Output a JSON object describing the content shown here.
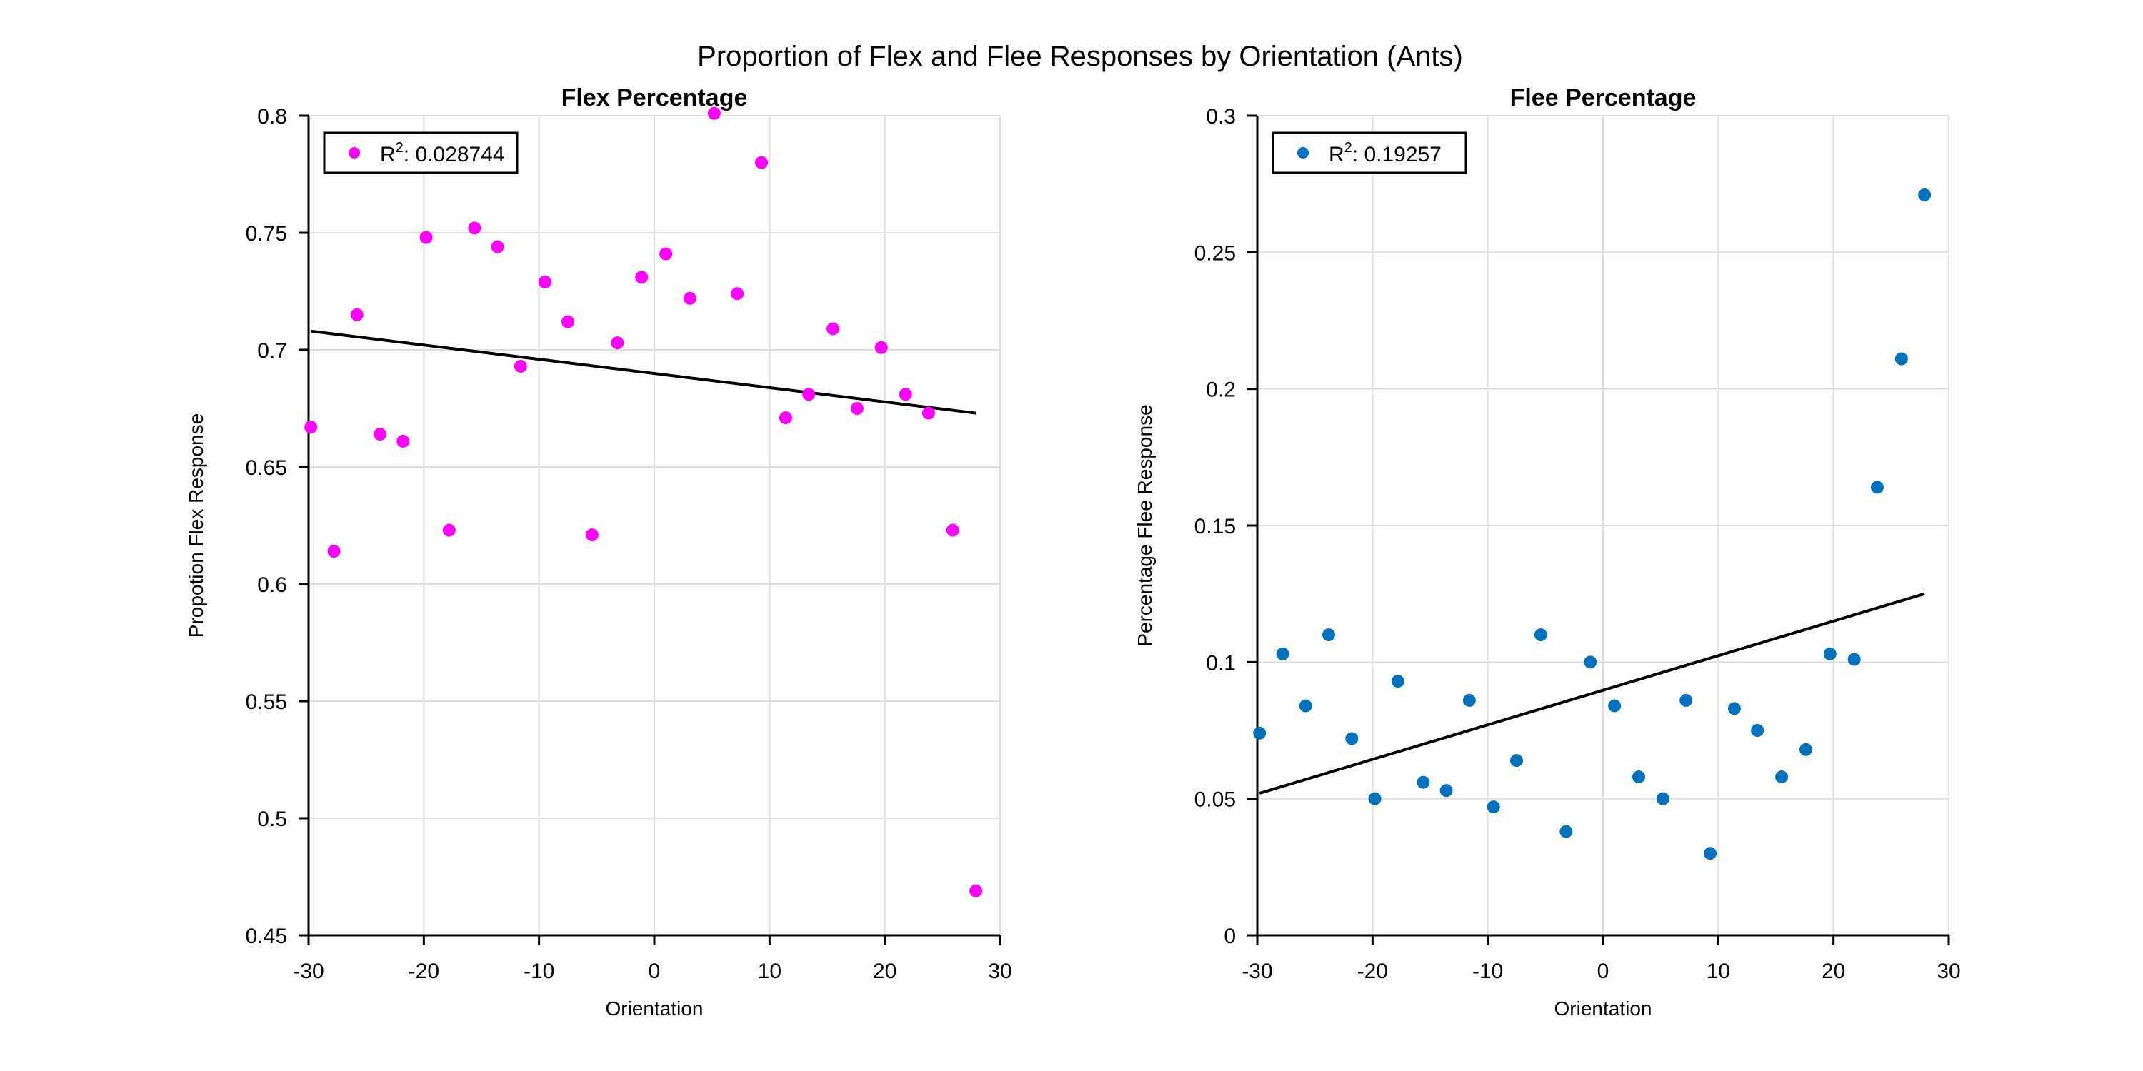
{
  "suptitle": "Proportion of Flex and Flee Responses by Orientation (Ants)",
  "chart_data": [
    {
      "type": "scatter",
      "title": "Flex Percentage",
      "xlabel": "Orientation",
      "ylabel": "Propotion Flex Response",
      "xlim": [
        -30,
        30
      ],
      "ylim": [
        0.45,
        0.8
      ],
      "xticks": [
        "-30",
        "-20",
        "-10",
        "0",
        "10",
        "20",
        "30"
      ],
      "yticks": [
        "0.45",
        "0.5",
        "0.55",
        "0.6",
        "0.65",
        "0.7",
        "0.75",
        "0.8"
      ],
      "grid": true,
      "legend": {
        "position": "top-left",
        "prefix": "R",
        "superscript": "2",
        "value": ": 0.028744"
      },
      "marker_color": "#ff00ff",
      "x": [
        -29.8,
        -27.8,
        -25.8,
        -23.8,
        -21.8,
        -19.8,
        -17.8,
        -15.6,
        -13.6,
        -11.6,
        -9.5,
        -7.5,
        -5.4,
        -3.2,
        -1.1,
        1.0,
        3.1,
        5.2,
        7.2,
        9.3,
        11.4,
        13.4,
        15.5,
        17.6,
        19.7,
        21.8,
        23.8,
        25.9,
        27.9
      ],
      "y": [
        0.667,
        0.614,
        0.715,
        0.664,
        0.661,
        0.748,
        0.623,
        0.752,
        0.744,
        0.693,
        0.729,
        0.712,
        0.621,
        0.703,
        0.731,
        0.741,
        0.722,
        0.801,
        0.724,
        0.78,
        0.671,
        0.681,
        0.709,
        0.675,
        0.701,
        0.681,
        0.673,
        0.623,
        0.469
      ],
      "trend": {
        "x": [
          -29.8,
          27.9
        ],
        "y": [
          0.708,
          0.673
        ]
      }
    },
    {
      "type": "scatter",
      "title": "Flee Percentage",
      "xlabel": "Orientation",
      "ylabel": "Percentage Flee Response",
      "xlim": [
        -30,
        30
      ],
      "ylim": [
        0,
        0.3
      ],
      "xticks": [
        "-30",
        "-20",
        "-10",
        "0",
        "10",
        "20",
        "30"
      ],
      "yticks": [
        "0",
        "0.05",
        "0.1",
        "0.15",
        "0.2",
        "0.25",
        "0.3"
      ],
      "grid": true,
      "legend": {
        "position": "top-left",
        "prefix": "R",
        "superscript": "2",
        "value": ": 0.19257"
      },
      "marker_color": "#0072bd",
      "x": [
        -29.8,
        -27.8,
        -25.8,
        -23.8,
        -21.8,
        -19.8,
        -17.8,
        -15.6,
        -13.6,
        -11.6,
        -9.5,
        -7.5,
        -5.4,
        -3.2,
        -1.1,
        1.0,
        3.1,
        5.2,
        7.2,
        9.3,
        11.4,
        13.4,
        15.5,
        17.6,
        19.7,
        21.8,
        23.8,
        25.9,
        27.9
      ],
      "y": [
        0.074,
        0.103,
        0.084,
        0.11,
        0.072,
        0.05,
        0.093,
        0.056,
        0.053,
        0.086,
        0.047,
        0.064,
        0.11,
        0.038,
        0.1,
        0.084,
        0.058,
        0.05,
        0.086,
        0.03,
        0.083,
        0.075,
        0.058,
        0.068,
        0.103,
        0.101,
        0.164,
        0.211,
        0.271
      ],
      "trend": {
        "x": [
          -29.8,
          27.9
        ],
        "y": [
          0.052,
          0.125
        ]
      }
    }
  ]
}
